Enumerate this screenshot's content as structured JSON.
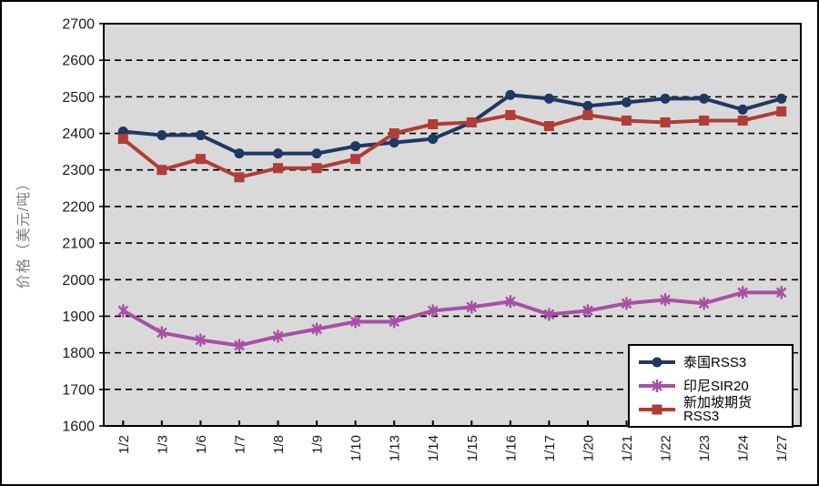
{
  "chart_data": {
    "type": "line",
    "title": "",
    "xlabel": "",
    "ylabel": "价格（美元/吨）",
    "ylim": [
      1600,
      2700
    ],
    "ytick_step": 100,
    "grid": "horizontal-dashed",
    "legend_position": "inside-bottom-right",
    "categories": [
      "1/2",
      "1/3",
      "1/6",
      "1/7",
      "1/8",
      "1/9",
      "1/10",
      "1/13",
      "1/14",
      "1/15",
      "1/16",
      "1/17",
      "1/20",
      "1/21",
      "1/22",
      "1/23",
      "1/24",
      "1/27"
    ],
    "series": [
      {
        "id": "thailand-rss3",
        "name": "泰国RSS3",
        "color": "#1F3864",
        "marker": "circle",
        "values": [
          2405,
          2395,
          2395,
          2345,
          2345,
          2345,
          2365,
          2375,
          2385,
          2430,
          2505,
          2495,
          2475,
          2485,
          2495,
          2495,
          2465,
          2495
        ]
      },
      {
        "id": "indonesia-sir20",
        "name": "印尼SIR20",
        "color": "#A850A5",
        "marker": "asterisk",
        "values": [
          1915,
          1855,
          1835,
          1820,
          1845,
          1865,
          1885,
          1885,
          1915,
          1925,
          1940,
          1905,
          1915,
          1935,
          1945,
          1935,
          1965,
          1965
        ]
      },
      {
        "id": "singapore-futures-rss3",
        "name": "新加坡期货RSS3",
        "color": "#B03D36",
        "marker": "square",
        "values": [
          2385,
          2300,
          2330,
          2280,
          2305,
          2305,
          2330,
          2400,
          2425,
          2430,
          2450,
          2420,
          2450,
          2435,
          2430,
          2435,
          2435,
          2460
        ]
      }
    ],
    "colors": {
      "plot_bg": "#D9D9D9",
      "axis": "#000000",
      "tick_label": "#1A1A1A",
      "y_title": "#7F7F7F",
      "legend_bg": "#FFFFFF",
      "legend_border": "#000000"
    }
  }
}
